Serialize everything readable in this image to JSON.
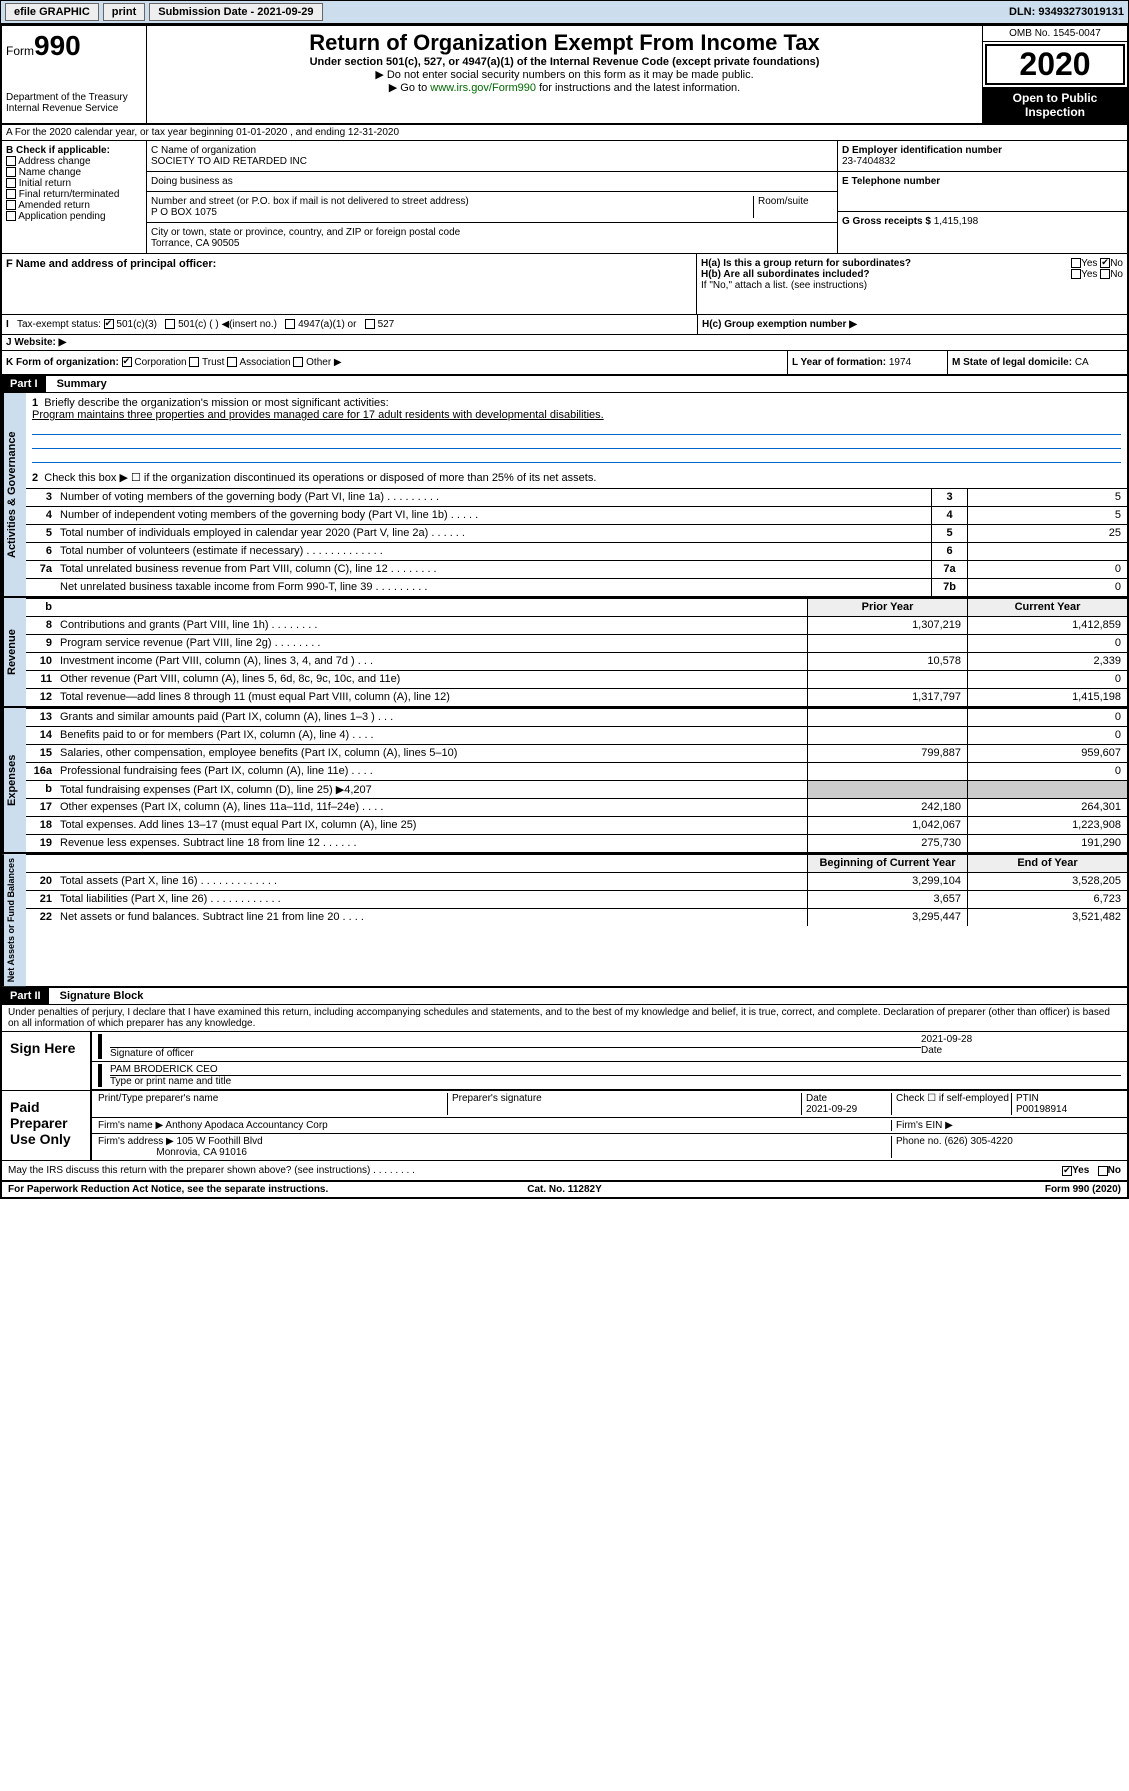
{
  "topbar": {
    "efile": "efile GRAPHIC",
    "print": "print",
    "subdate_label": "Submission Date - 2021-09-29",
    "dln": "DLN: 93493273019131"
  },
  "header": {
    "form_label": "Form",
    "form_num": "990",
    "dept": "Department of the Treasury\nInternal Revenue Service",
    "title": "Return of Organization Exempt From Income Tax",
    "sub1": "Under section 501(c), 527, or 4947(a)(1) of the Internal Revenue Code (except private foundations)",
    "sub2": "▶ Do not enter social security numbers on this form as it may be made public.",
    "sub3_pre": "▶ Go to ",
    "sub3_link": "www.irs.gov/Form990",
    "sub3_post": " for instructions and the latest information.",
    "omb": "OMB No. 1545-0047",
    "year": "2020",
    "badge": "Open to Public Inspection"
  },
  "lineA": "A For the 2020 calendar year, or tax year beginning 01-01-2020   , and ending 12-31-2020",
  "boxB": {
    "title": "B Check if applicable:",
    "opts": [
      "Address change",
      "Name change",
      "Initial return",
      "Final return/terminated",
      "Amended return",
      "Application pending"
    ]
  },
  "boxC": {
    "name_label": "C Name of organization",
    "name": "SOCIETY TO AID RETARDED INC",
    "dba_label": "Doing business as",
    "addr_label": "Number and street (or P.O. box if mail is not delivered to street address)",
    "room_label": "Room/suite",
    "addr": "P O BOX 1075",
    "city_label": "City or town, state or province, country, and ZIP or foreign postal code",
    "city": "Torrance, CA  90505"
  },
  "boxD": {
    "label": "D Employer identification number",
    "val": "23-7404832"
  },
  "boxE": {
    "label": "E Telephone number",
    "val": ""
  },
  "boxG": {
    "label": "G Gross receipts $",
    "val": "1,415,198"
  },
  "boxF": {
    "label": "F  Name and address of principal officer:"
  },
  "boxH": {
    "ha": "H(a)  Is this a group return for subordinates?",
    "hb": "H(b)  Are all subordinates included?",
    "hb_note": "If \"No,\" attach a list. (see instructions)",
    "hc": "H(c)  Group exemption number ▶",
    "yes": "Yes",
    "no": "No"
  },
  "boxI": {
    "label": "Tax-exempt status:",
    "o1": "501(c)(3)",
    "o2": "501(c) (  ) ◀(insert no.)",
    "o3": "4947(a)(1) or",
    "o4": "527"
  },
  "boxJ": {
    "label": "J   Website: ▶"
  },
  "boxK": {
    "label": "K Form of organization:",
    "o1": "Corporation",
    "o2": "Trust",
    "o3": "Association",
    "o4": "Other ▶"
  },
  "boxL": {
    "label": "L Year of formation:",
    "val": "1974"
  },
  "boxM": {
    "label": "M State of legal domicile:",
    "val": "CA"
  },
  "part1": {
    "hdr": "Part I",
    "title": "Summary",
    "l1": "Briefly describe the organization's mission or most significant activities:",
    "l1v": "Program maintains three properties and provides managed care for 17 adult residents with developmental disabilities.",
    "l2": "Check this box ▶ ☐  if the organization discontinued its operations or disposed of more than 25% of its net assets.",
    "rows_top": [
      {
        "n": "3",
        "d": "Number of voting members of the governing body (Part VI, line 1a)  .   .   .   .   .   .   .   .   .",
        "bn": "3",
        "v": "5"
      },
      {
        "n": "4",
        "d": "Number of independent voting members of the governing body (Part VI, line 1b)  .   .   .   .   .",
        "bn": "4",
        "v": "5"
      },
      {
        "n": "5",
        "d": "Total number of individuals employed in calendar year 2020 (Part V, line 2a)  .   .   .   .   .   .",
        "bn": "5",
        "v": "25"
      },
      {
        "n": "6",
        "d": "Total number of volunteers (estimate if necessary)  .   .   .   .   .   .   .   .   .   .   .   .   .",
        "bn": "6",
        "v": ""
      },
      {
        "n": "7a",
        "d": "Total unrelated business revenue from Part VIII, column (C), line 12  .   .   .   .   .   .   .   .",
        "bn": "7a",
        "v": "0"
      },
      {
        "n": "",
        "d": "Net unrelated business taxable income from Form 990-T, line 39  .   .   .   .   .   .   .   .   .",
        "bn": "7b",
        "v": "0"
      }
    ],
    "col_hdr": {
      "b": "b",
      "prior": "Prior Year",
      "current": "Current Year"
    },
    "revenue": [
      {
        "n": "8",
        "d": "Contributions and grants (Part VIII, line 1h)  .   .   .   .   .   .   .   .",
        "p": "1,307,219",
        "c": "1,412,859"
      },
      {
        "n": "9",
        "d": "Program service revenue (Part VIII, line 2g)  .   .   .   .   .   .   .   .",
        "p": "",
        "c": "0"
      },
      {
        "n": "10",
        "d": "Investment income (Part VIII, column (A), lines 3, 4, and 7d )  .   .   .",
        "p": "10,578",
        "c": "2,339"
      },
      {
        "n": "11",
        "d": "Other revenue (Part VIII, column (A), lines 5, 6d, 8c, 9c, 10c, and 11e)",
        "p": "",
        "c": "0"
      },
      {
        "n": "12",
        "d": "Total revenue—add lines 8 through 11 (must equal Part VIII, column (A), line 12)",
        "p": "1,317,797",
        "c": "1,415,198"
      }
    ],
    "expenses": [
      {
        "n": "13",
        "d": "Grants and similar amounts paid (Part IX, column (A), lines 1–3 )  .   .   .",
        "p": "",
        "c": "0"
      },
      {
        "n": "14",
        "d": "Benefits paid to or for members (Part IX, column (A), line 4)  .   .   .   .",
        "p": "",
        "c": "0"
      },
      {
        "n": "15",
        "d": "Salaries, other compensation, employee benefits (Part IX, column (A), lines 5–10)",
        "p": "799,887",
        "c": "959,607"
      },
      {
        "n": "16a",
        "d": "Professional fundraising fees (Part IX, column (A), line 11e)  .   .   .   .",
        "p": "",
        "c": "0"
      },
      {
        "n": "b",
        "d": "Total fundraising expenses (Part IX, column (D), line 25) ▶4,207",
        "p": "",
        "c": ""
      },
      {
        "n": "17",
        "d": "Other expenses (Part IX, column (A), lines 11a–11d, 11f–24e)  .   .   .   .",
        "p": "242,180",
        "c": "264,301"
      },
      {
        "n": "18",
        "d": "Total expenses. Add lines 13–17 (must equal Part IX, column (A), line 25)",
        "p": "1,042,067",
        "c": "1,223,908"
      },
      {
        "n": "19",
        "d": "Revenue less expenses. Subtract line 18 from line 12  .   .   .   .   .   .",
        "p": "275,730",
        "c": "191,290"
      }
    ],
    "na_hdr": {
      "p": "Beginning of Current Year",
      "c": "End of Year"
    },
    "netassets": [
      {
        "n": "20",
        "d": "Total assets (Part X, line 16)  .   .   .   .   .   .   .   .   .   .   .   .   .",
        "p": "3,299,104",
        "c": "3,528,205"
      },
      {
        "n": "21",
        "d": "Total liabilities (Part X, line 26)  .   .   .   .   .   .   .   .   .   .   .   .",
        "p": "3,657",
        "c": "6,723"
      },
      {
        "n": "22",
        "d": "Net assets or fund balances. Subtract line 21 from line 20  .   .   .   .",
        "p": "3,295,447",
        "c": "3,521,482"
      }
    ]
  },
  "part2": {
    "hdr": "Part II",
    "title": "Signature Block",
    "perjury": "Under penalties of perjury, I declare that I have examined this return, including accompanying schedules and statements, and to the best of my knowledge and belief, it is true, correct, and complete. Declaration of preparer (other than officer) is based on all information of which preparer has any knowledge.",
    "sign_here": "Sign Here",
    "sig_officer": "Signature of officer",
    "date": "2021-09-28",
    "date_label": "Date",
    "name": "PAM BRODERICK CEO",
    "name_label": "Type or print name and title",
    "paid": "Paid Preparer Use Only",
    "prep_name_label": "Print/Type preparer's name",
    "prep_sig_label": "Preparer's signature",
    "prep_date_label": "Date",
    "prep_date": "2021-09-29",
    "check_label": "Check ☐ if self-employed",
    "ptin_label": "PTIN",
    "ptin": "P00198914",
    "firm_name_label": "Firm's name    ▶",
    "firm_name": "Anthony Apodaca Accountancy Corp",
    "firm_ein_label": "Firm's EIN ▶",
    "firm_addr_label": "Firm's address ▶",
    "firm_addr": "105 W Foothill Blvd",
    "firm_city": "Monrovia, CA  91016",
    "phone_label": "Phone no.",
    "phone": "(626) 305-4220",
    "discuss": "May the IRS discuss this return with the preparer shown above? (see instructions)  .   .   .   .   .   .   .   .",
    "yes": "Yes",
    "no": "No"
  },
  "footer": {
    "l": "For Paperwork Reduction Act Notice, see the separate instructions.",
    "m": "Cat. No. 11282Y",
    "r": "Form 990 (2020)"
  },
  "sidelabels": {
    "gov": "Activities & Governance",
    "rev": "Revenue",
    "exp": "Expenses",
    "na": "Net Assets or Fund Balances"
  }
}
